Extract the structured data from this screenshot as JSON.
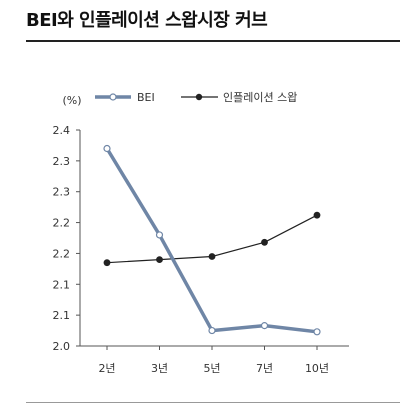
{
  "title": "BEI와 인플레이션 스왑시장 커브",
  "chart_data": {
    "type": "line",
    "title": "BEI와 인플레이션 스왑시장 커브",
    "unit_label": "(%)",
    "categories": [
      "2년",
      "3년",
      "5년",
      "7년",
      "10년"
    ],
    "y_tick_labels": [
      "2.0",
      "2.1",
      "2.1",
      "2.2",
      "2.2",
      "2.3",
      "2.3",
      "2.4"
    ],
    "ylim": [
      2.0,
      2.35
    ],
    "legend_position": "top",
    "grid": false,
    "series": [
      {
        "name": "BEI",
        "color": "#6f86a6",
        "marker": "open-circle",
        "values": [
          2.32,
          2.18,
          2.025,
          2.033,
          2.023
        ]
      },
      {
        "name": "인플레이션 스왑",
        "color": "#222222",
        "marker": "filled-circle",
        "values": [
          2.135,
          2.14,
          2.145,
          2.168,
          2.212
        ]
      }
    ]
  }
}
